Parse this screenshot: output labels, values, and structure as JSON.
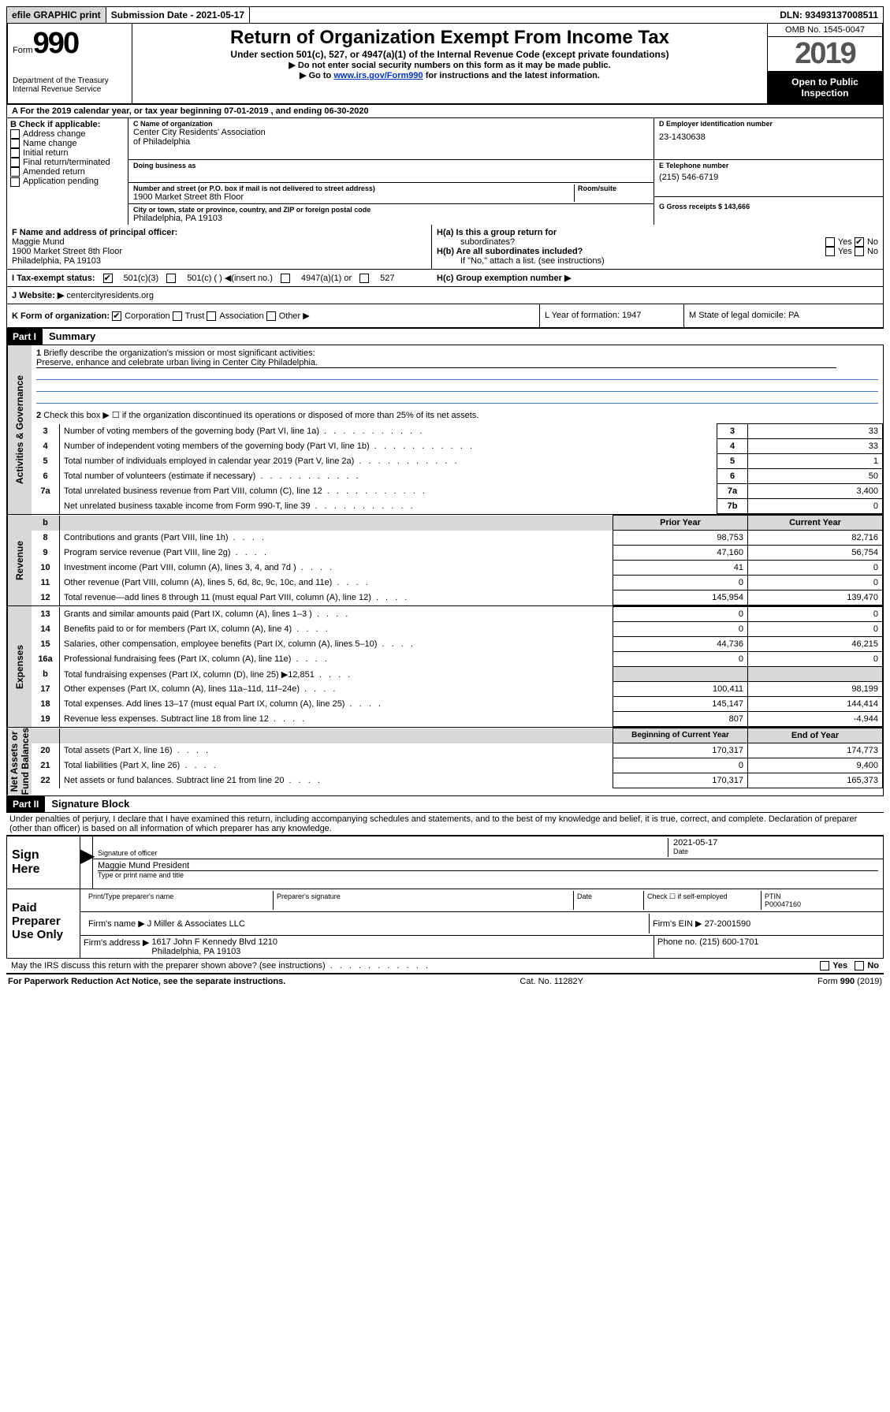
{
  "topbar": {
    "efile": "efile GRAPHIC print",
    "submission": "Submission Date - 2021-05-17",
    "dln": "DLN: 93493137008511"
  },
  "header": {
    "form_word": "Form",
    "form_num": "990",
    "dept": "Department of the Treasury\nInternal Revenue Service",
    "title": "Return of Organization Exempt From Income Tax",
    "subtitle": "Under section 501(c), 527, or 4947(a)(1) of the Internal Revenue Code (except private foundations)",
    "note1": "▶ Do not enter social security numbers on this form as it may be made public.",
    "note2_prefix": "▶ Go to ",
    "note2_link": "www.irs.gov/Form990",
    "note2_suffix": " for instructions and the latest information.",
    "omb": "OMB No. 1545-0047",
    "year": "2019",
    "open": "Open to Public\nInspection"
  },
  "period": "A   For the 2019 calendar year, or tax year beginning 07-01-2019    , and ending 06-30-2020",
  "section_b": {
    "label": "B Check if applicable:",
    "items": [
      "Address change",
      "Name change",
      "Initial return",
      "Final return/terminated",
      "Amended return",
      "Application pending"
    ]
  },
  "section_c": {
    "name_label": "C Name of organization",
    "name": "Center City Residents' Association\nof Philadelphia",
    "dba_label": "Doing business as",
    "addr_label": "Number and street (or P.O. box if mail is not delivered to street address)",
    "room_label": "Room/suite",
    "addr": "1900 Market Street 8th Floor",
    "city_label": "City or town, state or province, country, and ZIP or foreign postal code",
    "city": "Philadelphia, PA  19103"
  },
  "section_d": {
    "ein_label": "D Employer identification number",
    "ein": "23-1430638",
    "phone_label": "E Telephone number",
    "phone": "(215) 546-6719",
    "gross_label": "G Gross receipts $ 143,666"
  },
  "section_f": {
    "label": "F  Name and address of principal officer:",
    "name": "Maggie Mund\n1900 Market Street 8th Floor\nPhiladelphia, PA  19103"
  },
  "section_h": {
    "ha_label": "H(a)  Is this a group return for",
    "ha_sub": "subordinates?",
    "hb_label": "H(b)  Are all subordinates included?",
    "hb_note": "If \"No,\" attach a list. (see instructions)",
    "hc_label": "H(c)  Group exemption number ▶",
    "yes": "Yes",
    "no": "No"
  },
  "tax_status": {
    "label": "I   Tax-exempt status:",
    "opts": [
      "501(c)(3)",
      "501(c) (  ) ◀(insert no.)",
      "4947(a)(1) or",
      "527"
    ]
  },
  "website": {
    "label": "J   Website: ▶",
    "value": "centercityresidents.org"
  },
  "k_row": {
    "label": "K Form of organization:",
    "opts": [
      "Corporation",
      "Trust",
      "Association",
      "Other ▶"
    ],
    "l": "L Year of formation: 1947",
    "m": "M State of legal domicile: PA"
  },
  "parts": {
    "p1": "Part I",
    "p1_title": "Summary",
    "p2": "Part II",
    "p2_title": "Signature Block"
  },
  "sidebars": {
    "gov": "Activities & Governance",
    "rev": "Revenue",
    "exp": "Expenses",
    "net": "Net Assets or\nFund Balances"
  },
  "summary": {
    "line1": "Briefly describe the organization's mission or most significant activities:",
    "mission": "Preserve, enhance and celebrate urban living in Center City Philadelphia.",
    "line2": "Check this box ▶ ☐  if the organization discontinued its operations or disposed of more than 25% of its net assets.",
    "headers": {
      "prior": "Prior Year",
      "current": "Current Year",
      "begin": "Beginning of Current Year",
      "end": "End of Year"
    },
    "rows": [
      {
        "n": "3",
        "d": "Number of voting members of the governing body (Part VI, line 1a)",
        "c": "3",
        "v": "33"
      },
      {
        "n": "4",
        "d": "Number of independent voting members of the governing body (Part VI, line 1b)",
        "c": "4",
        "v": "33"
      },
      {
        "n": "5",
        "d": "Total number of individuals employed in calendar year 2019 (Part V, line 2a)",
        "c": "5",
        "v": "1"
      },
      {
        "n": "6",
        "d": "Total number of volunteers (estimate if necessary)",
        "c": "6",
        "v": "50"
      },
      {
        "n": "7a",
        "d": "Total unrelated business revenue from Part VIII, column (C), line 12",
        "c": "7a",
        "v": "3,400"
      },
      {
        "n": "",
        "d": "Net unrelated business taxable income from Form 990-T, line 39",
        "c": "7b",
        "v": "0"
      }
    ],
    "rev_rows": [
      {
        "n": "8",
        "d": "Contributions and grants (Part VIII, line 1h)",
        "p": "98,753",
        "c": "82,716"
      },
      {
        "n": "9",
        "d": "Program service revenue (Part VIII, line 2g)",
        "p": "47,160",
        "c": "56,754"
      },
      {
        "n": "10",
        "d": "Investment income (Part VIII, column (A), lines 3, 4, and 7d )",
        "p": "41",
        "c": "0"
      },
      {
        "n": "11",
        "d": "Other revenue (Part VIII, column (A), lines 5, 6d, 8c, 9c, 10c, and 11e)",
        "p": "0",
        "c": "0"
      },
      {
        "n": "12",
        "d": "Total revenue—add lines 8 through 11 (must equal Part VIII, column (A), line 12)",
        "p": "145,954",
        "c": "139,470"
      }
    ],
    "exp_rows": [
      {
        "n": "13",
        "d": "Grants and similar amounts paid (Part IX, column (A), lines 1–3 )",
        "p": "0",
        "c": "0"
      },
      {
        "n": "14",
        "d": "Benefits paid to or for members (Part IX, column (A), line 4)",
        "p": "0",
        "c": "0"
      },
      {
        "n": "15",
        "d": "Salaries, other compensation, employee benefits (Part IX, column (A), lines 5–10)",
        "p": "44,736",
        "c": "46,215"
      },
      {
        "n": "16a",
        "d": "Professional fundraising fees (Part IX, column (A), line 11e)",
        "p": "0",
        "c": "0"
      },
      {
        "n": "b",
        "d": "Total fundraising expenses (Part IX, column (D), line 25) ▶12,851",
        "p": "",
        "c": "",
        "shade": true
      },
      {
        "n": "17",
        "d": "Other expenses (Part IX, column (A), lines 11a–11d, 11f–24e)",
        "p": "100,411",
        "c": "98,199"
      },
      {
        "n": "18",
        "d": "Total expenses. Add lines 13–17 (must equal Part IX, column (A), line 25)",
        "p": "145,147",
        "c": "144,414"
      },
      {
        "n": "19",
        "d": "Revenue less expenses. Subtract line 18 from line 12",
        "p": "807",
        "c": "-4,944"
      }
    ],
    "net_rows": [
      {
        "n": "20",
        "d": "Total assets (Part X, line 16)",
        "p": "170,317",
        "c": "174,773"
      },
      {
        "n": "21",
        "d": "Total liabilities (Part X, line 26)",
        "p": "0",
        "c": "9,400"
      },
      {
        "n": "22",
        "d": "Net assets or fund balances. Subtract line 21 from line 20",
        "p": "170,317",
        "c": "165,373"
      }
    ]
  },
  "sig": {
    "perjury": "Under penalties of perjury, I declare that I have examined this return, including accompanying schedules and statements, and to the best of my knowledge and belief, it is true, correct, and complete. Declaration of preparer (other than officer) is based on all information of which preparer has any knowledge.",
    "sign_here": "Sign\nHere",
    "sig_officer": "Signature of officer",
    "date": "2021-05-17",
    "date_label": "Date",
    "officer_name": "Maggie Mund President",
    "type_name": "Type or print name and title",
    "paid": "Paid\nPreparer\nUse Only",
    "prep_name_label": "Print/Type preparer's name",
    "prep_sig_label": "Preparer's signature",
    "check_self": "Check ☐ if self-employed",
    "ptin_label": "PTIN",
    "ptin": "P00047160",
    "firm_name_label": "Firm's name    ▶",
    "firm_name": "J Miller & Associates LLC",
    "firm_ein_label": "Firm's EIN ▶",
    "firm_ein": "27-2001590",
    "firm_addr_label": "Firm's address ▶",
    "firm_addr": "1617 John F Kennedy Blvd 1210\nPhiladelphia, PA  19103",
    "phone_label": "Phone no.",
    "firm_phone": "(215) 600-1701",
    "discuss": "May the IRS discuss this return with the preparer shown above? (see instructions)"
  },
  "footer": {
    "paperwork": "For Paperwork Reduction Act Notice, see the separate instructions.",
    "cat": "Cat. No. 11282Y",
    "form": "Form 990 (2019)"
  }
}
